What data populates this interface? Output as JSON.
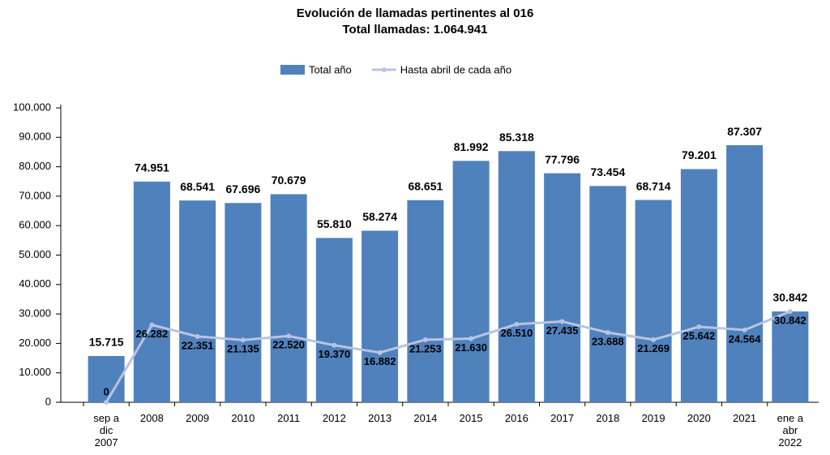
{
  "chart_data": {
    "type": "bar",
    "title": "Evolución de llamadas pertinentes al 016",
    "subtitle": "Total llamadas: 1.064.941",
    "categories": [
      "sep a dic 2007",
      "2008",
      "2009",
      "2010",
      "2011",
      "2012",
      "2013",
      "2014",
      "2015",
      "2016",
      "2017",
      "2018",
      "2019",
      "2020",
      "2021",
      "ene a abr 2022"
    ],
    "series": [
      {
        "name": "Total año",
        "type": "bar",
        "color": "#4f81bd",
        "values": [
          15715,
          74951,
          68541,
          67696,
          70679,
          55810,
          58274,
          68651,
          81992,
          85318,
          77796,
          73454,
          68714,
          79201,
          87307,
          30842
        ],
        "value_labels": [
          "15.715",
          "74.951",
          "68.541",
          "67.696",
          "70.679",
          "55.810",
          "58.274",
          "68.651",
          "81.992",
          "85.318",
          "77.796",
          "73.454",
          "68.714",
          "79.201",
          "87.307",
          "30.842"
        ]
      },
      {
        "name": "Hasta abril de cada año",
        "type": "line",
        "color": "#b9c4e0",
        "values": [
          0,
          26282,
          22351,
          21135,
          22520,
          19370,
          16882,
          21253,
          21630,
          26510,
          27435,
          23688,
          21269,
          25642,
          24564,
          30842
        ],
        "value_labels": [
          "0",
          "26.282",
          "22.351",
          "21.135",
          "22.520",
          "19.370",
          "16.882",
          "21.253",
          "21.630",
          "26.510",
          "27.435",
          "23.688",
          "21.269",
          "25.642",
          "24.564",
          "30.842"
        ]
      }
    ],
    "ylim": [
      0,
      100000
    ],
    "yticks": [
      0,
      {
        "value": 10000,
        "label": "10.000"
      },
      {
        "value": 20000,
        "label": "20.000"
      },
      {
        "value": 30000,
        "label": "30.000"
      },
      {
        "value": 40000,
        "label": "40.000"
      },
      {
        "value": 50000,
        "label": "50.000"
      },
      {
        "value": 60000,
        "label": "60.000"
      },
      {
        "value": 70000,
        "label": "70.000"
      },
      {
        "value": 80000,
        "label": "80.000"
      },
      {
        "value": 90000,
        "label": "90.000"
      },
      {
        "value": {
          "value": 100000,
          "label": "100.000"
        },
        "label": "100.000"
      }
    ],
    "grid": false,
    "legend": "top"
  }
}
